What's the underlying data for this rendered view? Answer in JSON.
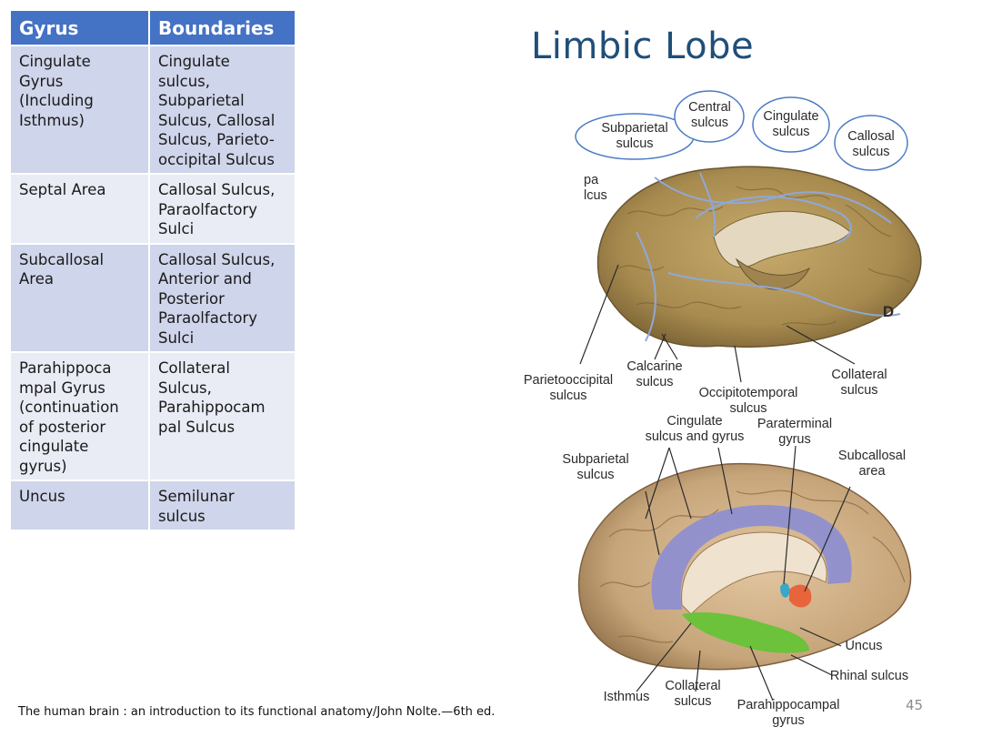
{
  "slide": {
    "title": "Limbic Lobe",
    "citation": "The human brain : an introduction to its functional anatomy/John Nolte.—6th ed.",
    "page_number": "45"
  },
  "table": {
    "headers": [
      "Gyrus",
      "Boundaries"
    ],
    "rows": [
      {
        "gyrus": [
          "Cingulate",
          "Gyrus",
          "(Including",
          "Isthmus)"
        ],
        "boundaries": [
          "Cingulate",
          "sulcus,",
          "Subparietal",
          "Sulcus, Callosal",
          "Sulcus, Parieto-",
          "occipital  Sulcus"
        ]
      },
      {
        "gyrus": [
          "Septal Area"
        ],
        "boundaries": [
          "Callosal Sulcus,",
          "Paraolfactory",
          "Sulci"
        ]
      },
      {
        "gyrus": [
          "Subcallosal",
          "Area"
        ],
        "boundaries": [
          "Callosal  Sulcus,",
          "Anterior and",
          "Posterior",
          "Paraolfactory",
          "Sulci"
        ]
      },
      {
        "gyrus": [
          "Parahippoca",
          "mpal Gyrus",
          "(continuation",
          "of posterior",
          "cingulate",
          "gyrus)"
        ],
        "boundaries": [
          "Collateral",
          "Sulcus,",
          "Parahippocam",
          "pal Sulcus"
        ]
      },
      {
        "gyrus": [
          "Uncus"
        ],
        "boundaries": [
          "Semilunar",
          "sulcus"
        ]
      }
    ]
  },
  "figure_top": {
    "panel_letter": "D",
    "circled_labels": {
      "subparietal": "Subparietal\nsulcus",
      "central": "Central\nsulcus",
      "cingulate": "Cingulate\nsulcus",
      "callosal": "Callosal\nsulcus"
    },
    "partial_label": "pa\nlcus",
    "labels": {
      "parietooccipital": "Parietooccipital\nsulcus",
      "calcarine": "Calcarine\nsulcus",
      "occipitotemporal": "Occipitotemporal\nsulcus",
      "collateral": "Collateral\nsulcus"
    }
  },
  "figure_bottom": {
    "labels": {
      "cingulate_sulcus_gyrus": "Cingulate\nsulcus and gyrus",
      "paraterminal": "Paraterminal\ngyrus",
      "subparietal": "Subparietal\nsulcus",
      "subcallosal": "Subcallosal\narea",
      "uncus": "Uncus",
      "rhinal": "Rhinal sulcus",
      "isthmus": "Isthmus",
      "collateral": "Collateral\nsulcus",
      "parahippocampal": "Parahippocampal\ngyrus"
    },
    "colors": {
      "cingulate_gyrus": "#8e8fd0",
      "parahippocampal_gyrus": "#6cc23a",
      "subcallosal_area": "#e8643a",
      "paraterminal_gyrus": "#3aa6c8"
    }
  },
  "colors": {
    "header_bg": "#4472c4",
    "row_odd": "#cfd5ea",
    "row_even": "#e9ebf5",
    "title": "#1f4e79",
    "brain_tan": "#b59a5e",
    "sulcus_line": "#8fa8d8",
    "circle_outline": "#4a7bc6"
  }
}
